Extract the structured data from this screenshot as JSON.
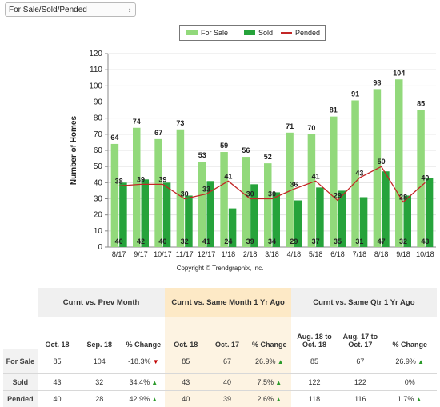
{
  "dropdown": {
    "selected": "For Sale/Sold/Pended",
    "arrow_icon": "updown-arrow-icon"
  },
  "legend": {
    "for_sale": "For Sale",
    "sold": "Sold",
    "pended": "Pended"
  },
  "colors": {
    "for_sale": "#92d97b",
    "sold": "#26a33b",
    "pended": "#c32626"
  },
  "copyright": "Copyright © Trendgraphix, Inc.",
  "chart_data": {
    "type": "bar",
    "categories": [
      "8/17",
      "9/17",
      "10/17",
      "11/17",
      "12/17",
      "1/18",
      "2/18",
      "3/18",
      "4/18",
      "5/18",
      "6/18",
      "7/18",
      "8/18",
      "9/18",
      "10/18"
    ],
    "series": [
      {
        "name": "For Sale",
        "type": "bar",
        "values": [
          64,
          74,
          67,
          73,
          53,
          59,
          56,
          52,
          71,
          70,
          81,
          91,
          98,
          104,
          85
        ]
      },
      {
        "name": "Sold",
        "type": "bar",
        "values": [
          40,
          42,
          40,
          32,
          41,
          24,
          39,
          34,
          29,
          37,
          35,
          31,
          47,
          32,
          43
        ]
      },
      {
        "name": "Pended",
        "type": "line",
        "values": [
          38,
          39,
          39,
          30,
          33,
          41,
          30,
          30,
          36,
          41,
          29,
          43,
          50,
          28,
          40
        ]
      }
    ],
    "ylabel": "Number of Homes",
    "ylim": [
      0,
      120
    ],
    "yticks": [
      0,
      10,
      20,
      30,
      40,
      50,
      60,
      70,
      80,
      90,
      100,
      110,
      120
    ],
    "grid": true,
    "legend_position": "top"
  },
  "table": {
    "groups": [
      "Curnt vs. Prev Month",
      "Curnt vs. Same Month 1 Yr Ago",
      "Curnt vs. Same Qtr 1 Yr Ago"
    ],
    "columns": [
      "Oct. 18",
      "Sep. 18",
      "% Change",
      "Oct. 18",
      "Oct. 17",
      "% Change",
      "Aug. 18 to Oct. 18",
      "Aug. 17 to Oct. 17",
      "% Change"
    ],
    "rows": [
      {
        "label": "For Sale",
        "cells": [
          "85",
          "104",
          "-18.3%",
          "85",
          "67",
          "26.9%",
          "85",
          "67",
          "26.9%"
        ],
        "arrows": [
          "down",
          "up",
          "up"
        ]
      },
      {
        "label": "Sold",
        "cells": [
          "43",
          "32",
          "34.4%",
          "43",
          "40",
          "7.5%",
          "122",
          "122",
          "0%"
        ],
        "arrows": [
          "up",
          "up",
          ""
        ]
      },
      {
        "label": "Pended",
        "cells": [
          "40",
          "28",
          "42.9%",
          "40",
          "39",
          "2.6%",
          "118",
          "116",
          "1.7%"
        ],
        "arrows": [
          "up",
          "up",
          "up"
        ]
      }
    ]
  }
}
